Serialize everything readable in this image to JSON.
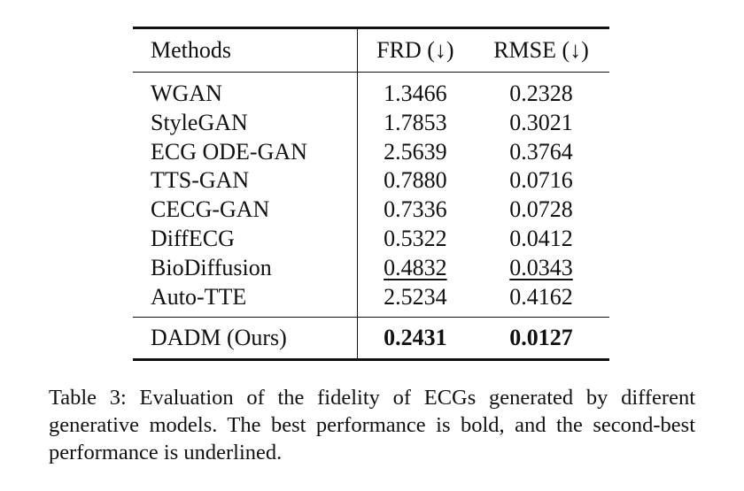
{
  "table": {
    "headers": [
      "Methods",
      "FRD (↓)",
      "RMSE (↓)"
    ],
    "rows": [
      {
        "method": "WGAN",
        "frd": "1.3466",
        "rmse": "0.2328"
      },
      {
        "method": "StyleGAN",
        "frd": "1.7853",
        "rmse": "0.3021"
      },
      {
        "method": "ECG ODE-GAN",
        "frd": "2.5639",
        "rmse": "0.3764"
      },
      {
        "method": "TTS-GAN",
        "frd": "0.7880",
        "rmse": "0.0716"
      },
      {
        "method": "CECG-GAN",
        "frd": "0.7336",
        "rmse": "0.0728"
      },
      {
        "method": "DiffECG",
        "frd": "0.5322",
        "rmse": "0.0412"
      },
      {
        "method": "BioDiffusion",
        "frd": "0.4832",
        "rmse": "0.0343"
      },
      {
        "method": "Auto-TTE",
        "frd": "2.5234",
        "rmse": "0.4162"
      }
    ],
    "ours": {
      "method": "DADM (Ours)",
      "frd": "0.2431",
      "rmse": "0.0127"
    }
  },
  "caption": "Table 3: Evaluation of the fidelity of ECGs generated by different generative models. The best performance is bold, and the second-best performance is underlined."
}
